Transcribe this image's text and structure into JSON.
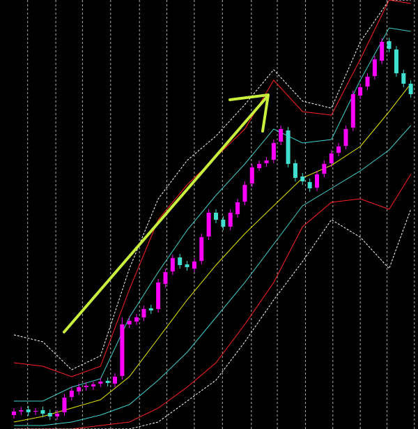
{
  "chart_data": {
    "type": "candlestick",
    "categories": [
      null,
      null,
      null,
      null,
      null,
      null,
      null,
      null,
      null,
      null,
      null,
      null,
      null,
      null,
      null,
      null,
      null,
      null,
      null,
      null,
      null,
      null,
      null,
      null,
      null,
      null,
      null,
      null,
      null,
      null,
      null,
      null,
      null,
      null,
      null,
      null,
      null,
      null,
      null,
      null,
      null,
      null,
      null,
      null,
      null,
      null,
      null,
      null,
      null,
      null,
      null,
      null,
      null,
      null,
      null,
      null
    ],
    "open": [
      20,
      25,
      28,
      25,
      27,
      23,
      18,
      24,
      46,
      54,
      60,
      61,
      65,
      69,
      65,
      76,
      150,
      154,
      160,
      173,
      172,
      208,
      226,
      246,
      236,
      230,
      241,
      276,
      310,
      300,
      290,
      308,
      326,
      352,
      374,
      381,
      386,
      412,
      428,
      381,
      362,
      354,
      346,
      366,
      381,
      396,
      406,
      432,
      478,
      491,
      506,
      528,
      556,
      544,
      510,
      495
    ],
    "high": [
      30,
      32,
      33,
      30,
      32,
      28,
      27,
      50,
      60,
      65,
      67,
      68,
      73,
      74,
      80,
      160,
      160,
      165,
      177,
      178,
      215,
      230,
      250,
      251,
      241,
      245,
      280,
      315,
      315,
      305,
      315,
      330,
      355,
      380,
      385,
      390,
      415,
      435,
      433,
      386,
      367,
      359,
      370,
      385,
      400,
      410,
      435,
      485,
      495,
      510,
      535,
      560,
      561,
      549,
      515,
      500
    ],
    "low": [
      15,
      20,
      19,
      20,
      17,
      13,
      13,
      19,
      41,
      49,
      55,
      56,
      60,
      61,
      60,
      71,
      145,
      149,
      155,
      165,
      167,
      203,
      221,
      230,
      227,
      225,
      236,
      271,
      295,
      285,
      285,
      303,
      321,
      347,
      370,
      376,
      381,
      407,
      375,
      355,
      350,
      340,
      341,
      361,
      376,
      391,
      401,
      427,
      473,
      486,
      501,
      523,
      540,
      505,
      490,
      475
    ],
    "close": [
      25,
      27,
      24,
      26,
      22,
      18,
      22,
      45,
      55,
      60,
      62,
      64,
      68,
      66,
      75,
      150,
      155,
      160,
      172,
      170,
      210,
      225,
      245,
      235,
      232,
      240,
      275,
      310,
      300,
      290,
      310,
      325,
      350,
      375,
      380,
      385,
      410,
      430,
      380,
      360,
      355,
      345,
      365,
      380,
      395,
      405,
      430,
      480,
      490,
      505,
      530,
      555,
      545,
      510,
      495,
      480
    ],
    "up_color": "#ff00ff",
    "down_color": "#40e0d0",
    "xlim": [
      -1.93,
      56
    ],
    "xticks": [
      1.9,
      5.8,
      9.5,
      13.4,
      17.4,
      21.2,
      25,
      28.9,
      32.9,
      36.5,
      40.4,
      44.2,
      48,
      51.7,
      55.5
    ],
    "ylim": [
      0,
      615
    ],
    "grid": true,
    "bands": {
      "x": [
        0,
        4,
        8,
        12,
        16,
        20,
        24,
        28,
        32,
        36,
        40,
        44,
        48,
        52,
        55
      ],
      "series": [
        {
          "color": "#ffffff",
          "dash": true,
          "values": [
            135,
            125,
            85,
            105,
            230,
            330,
            385,
            420,
            465,
            515,
            470,
            460,
            555,
            615,
            615
          ]
        },
        {
          "color": "#ff2020",
          "dash": false,
          "values": [
            95,
            90,
            75,
            90,
            200,
            300,
            350,
            390,
            430,
            500,
            455,
            450,
            530,
            615,
            610
          ]
        },
        {
          "color": "#40d0d0",
          "dash": false,
          "values": [
            40,
            40,
            60,
            72,
            160,
            225,
            285,
            335,
            380,
            430,
            410,
            415,
            500,
            575,
            570
          ]
        },
        {
          "color": "#e8e800",
          "dash": false,
          "values": [
            10,
            18,
            30,
            42,
            75,
            130,
            185,
            235,
            280,
            320,
            360,
            378,
            405,
            455,
            495
          ]
        },
        {
          "color": "#40d0d0",
          "dash": false,
          "values": [
            5,
            5,
            10,
            20,
            35,
            70,
            110,
            160,
            210,
            265,
            320,
            345,
            370,
            400,
            435
          ]
        },
        {
          "color": "#ff2020",
          "dash": false,
          "values": [
            0,
            0,
            0,
            5,
            10,
            30,
            60,
            95,
            150,
            210,
            290,
            325,
            330,
            315,
            365
          ]
        },
        {
          "color": "#ffffff",
          "dash": true,
          "values": [
            0,
            0,
            0,
            0,
            0,
            10,
            40,
            70,
            125,
            185,
            240,
            300,
            275,
            230,
            315
          ]
        }
      ]
    }
  }
}
